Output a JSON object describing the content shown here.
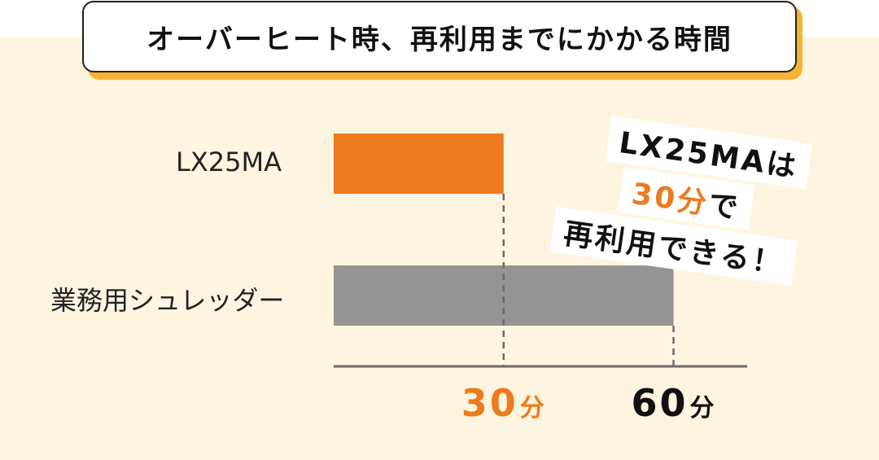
{
  "title": "オーバーヒート時、再利用までにかかる時間",
  "callout": {
    "line1": "LX25MAは",
    "line2_value": "30分",
    "line2_suffix": "で",
    "line3": "再利用できる！"
  },
  "colors": {
    "accent": "#ee7a1e",
    "gray_bar": "#949494",
    "cream": "#fdf5df",
    "title_shadow": "#f5b335"
  },
  "chart_data": {
    "type": "bar",
    "orientation": "horizontal",
    "categories": [
      "LX25MA",
      "業務用シュレッダー"
    ],
    "values": [
      30,
      60
    ],
    "unit": "分",
    "xlim": [
      0,
      73
    ],
    "ticks": [
      {
        "value": 30,
        "num": "30",
        "unit": "分"
      },
      {
        "value": 60,
        "num": "60",
        "unit": "分"
      }
    ],
    "grid": false
  }
}
